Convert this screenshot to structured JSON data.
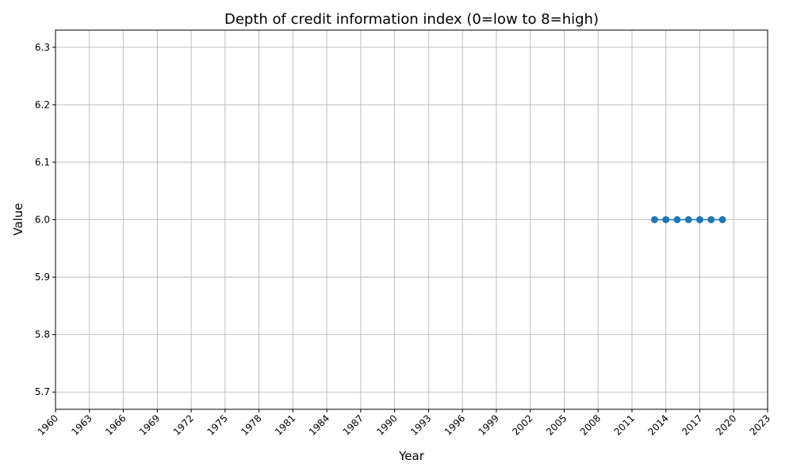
{
  "chart_data": {
    "type": "line",
    "title": "Depth of credit information index (0=low to 8=high)",
    "xlabel": "Year",
    "ylabel": "Value",
    "xlim": [
      1960,
      2023
    ],
    "ylim": [
      5.67,
      6.33
    ],
    "xticks": [
      1960,
      1963,
      1966,
      1969,
      1972,
      1975,
      1978,
      1981,
      1984,
      1987,
      1990,
      1993,
      1996,
      1999,
      2002,
      2005,
      2008,
      2011,
      2014,
      2017,
      2020,
      2023
    ],
    "yticks": [
      5.7,
      5.8,
      5.9,
      6.0,
      6.1,
      6.2,
      6.3
    ],
    "grid": true,
    "legend": false,
    "series": [
      {
        "color": "#1f77b4",
        "marker": "circle",
        "x": [
          2013,
          2014,
          2015,
          2016,
          2017,
          2018,
          2019
        ],
        "y": [
          6.0,
          6.0,
          6.0,
          6.0,
          6.0,
          6.0,
          6.0
        ]
      }
    ]
  }
}
